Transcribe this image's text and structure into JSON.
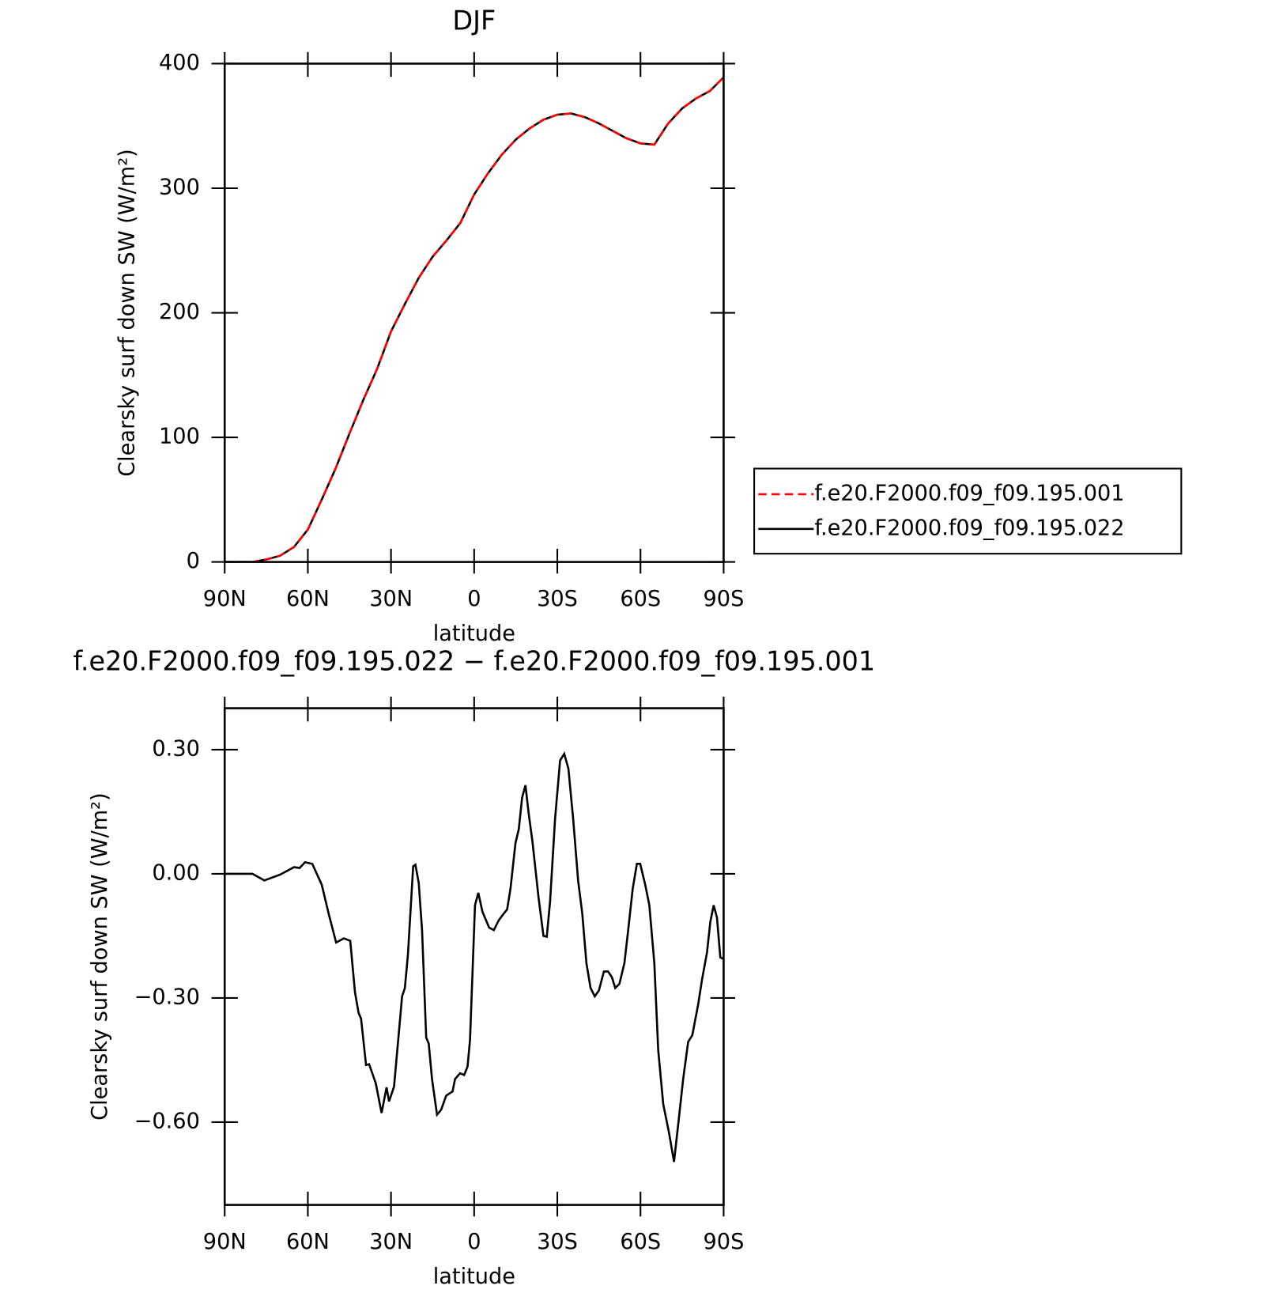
{
  "chart_data": [
    {
      "type": "line",
      "title": "DJF",
      "xlabel": "latitude",
      "ylabel": "Clearsky surf down SW (W/m²)",
      "x": [
        90,
        85,
        80,
        75,
        70,
        65,
        60,
        55,
        50,
        45,
        40,
        35,
        30,
        25,
        20,
        15,
        10,
        5,
        0,
        -5,
        -10,
        -15,
        -20,
        -25,
        -30,
        -35,
        -40,
        -45,
        -50,
        -55,
        -60,
        -65,
        -70,
        -75,
        -80,
        -85,
        -90
      ],
      "series": [
        {
          "name": "f.e20.F2000.f09_f09.195.022",
          "color": "#000000",
          "linestyle": "solid",
          "values": [
            0,
            0,
            0,
            2,
            5,
            12,
            26,
            50,
            75,
            103,
            130,
            155,
            185,
            207,
            228,
            245,
            258,
            272,
            295,
            312,
            327,
            339,
            348,
            355,
            359,
            360,
            357,
            352,
            346,
            340,
            336,
            335,
            352,
            364,
            372,
            378,
            389
          ]
        },
        {
          "name": "f.e20.F2000.f09_f09.195.001",
          "color": "#ff0000",
          "linestyle": "dashed",
          "values": [
            0,
            0,
            0,
            2,
            5,
            12,
            26,
            50,
            75,
            103,
            130,
            155,
            185,
            207,
            228,
            245,
            258,
            272,
            295,
            312,
            327,
            339,
            348,
            355,
            359,
            360,
            357,
            352,
            346,
            340,
            336,
            335,
            352,
            364,
            372,
            378,
            389
          ]
        }
      ],
      "legend_order": [
        1,
        0
      ],
      "legend": "right",
      "xlim": [
        90,
        -90
      ],
      "xticks": [
        {
          "value": 90,
          "label": "90N"
        },
        {
          "value": 60,
          "label": "60N"
        },
        {
          "value": 30,
          "label": "30N"
        },
        0,
        {
          "value": -30,
          "label": "30S"
        },
        {
          "value": -60,
          "label": "60S"
        },
        {
          "value": -90,
          "label": "90S"
        }
      ],
      "ylim": [
        0,
        400
      ],
      "yticks": [
        0,
        100,
        200,
        300,
        400
      ]
    },
    {
      "type": "line",
      "title": "f.e20.F2000.f09_f09.195.022 − f.e20.F2000.f09_f09.195.001",
      "xlabel": "latitude",
      "ylabel": "Clearsky surf down SW (W/m²)",
      "x": [
        90,
        80,
        75.7,
        70,
        65,
        63,
        61,
        58.4,
        55,
        52.5,
        49.8,
        47,
        44.7,
        43,
        41.7,
        40.8,
        39,
        37.9,
        35.5,
        33.4,
        31.6,
        30.7,
        28.9,
        26,
        25,
        23.9,
        22,
        21.2,
        20,
        18.8,
        17.3,
        16.4,
        15.2,
        13.4,
        11.9,
        10.1,
        7.8,
        6.9,
        5.1,
        3.6,
        2.4,
        1.5,
        -0.3,
        -1.5,
        -3,
        -5.4,
        -7.1,
        -8.9,
        -10.7,
        -11.9,
        -13.1,
        -14.9,
        -16.1,
        -17.3,
        -18.5,
        -19.7,
        -21.1,
        -23.2,
        -25,
        -26.2,
        -27.4,
        -29.2,
        -31,
        -32.5,
        -34,
        -35.7,
        -37.5,
        -39,
        -40.5,
        -42,
        -43.5,
        -45,
        -46.8,
        -48.3,
        -49.7,
        -50.9,
        -52.4,
        -54.2,
        -55.4,
        -57.2,
        -58.7,
        -59.9,
        -61.7,
        -63.2,
        -65,
        -66.4,
        -68.2,
        -70.3,
        -72.1,
        -73.6,
        -75.4,
        -77.2,
        -78.7,
        -80.8,
        -82.2,
        -84,
        -85.2,
        -86.4,
        -87.6,
        -88.8,
        -90
      ],
      "series": [
        {
          "color": "#000000",
          "linestyle": "solid",
          "values": [
            0,
            0,
            -0.016,
            -0.002,
            0.016,
            0.014,
            0.028,
            0.024,
            -0.026,
            -0.096,
            -0.166,
            -0.156,
            -0.162,
            -0.286,
            -0.336,
            -0.35,
            -0.462,
            -0.46,
            -0.506,
            -0.578,
            -0.516,
            -0.55,
            -0.514,
            -0.296,
            -0.276,
            -0.196,
            0.018,
            0.022,
            -0.022,
            -0.136,
            -0.396,
            -0.41,
            -0.496,
            -0.582,
            -0.57,
            -0.536,
            -0.526,
            -0.496,
            -0.482,
            -0.486,
            -0.466,
            -0.402,
            -0.076,
            -0.046,
            -0.092,
            -0.13,
            -0.136,
            -0.112,
            -0.096,
            -0.086,
            -0.036,
            0.074,
            0.108,
            0.184,
            0.214,
            0.144,
            0.074,
            -0.056,
            -0.15,
            -0.152,
            -0.066,
            0.134,
            0.274,
            0.29,
            0.254,
            0.134,
            -0.016,
            -0.096,
            -0.216,
            -0.276,
            -0.296,
            -0.282,
            -0.236,
            -0.236,
            -0.25,
            -0.276,
            -0.266,
            -0.216,
            -0.146,
            -0.036,
            0.024,
            0.024,
            -0.026,
            -0.076,
            -0.216,
            -0.426,
            -0.556,
            -0.626,
            -0.696,
            -0.606,
            -0.496,
            -0.406,
            -0.39,
            -0.316,
            -0.256,
            -0.19,
            -0.116,
            -0.076,
            -0.106,
            -0.202,
            -0.206
          ]
        }
      ],
      "xlim": [
        90,
        -90
      ],
      "xticks": [
        {
          "value": 90,
          "label": "90N"
        },
        {
          "value": 60,
          "label": "60N"
        },
        {
          "value": 30,
          "label": "30N"
        },
        0,
        {
          "value": -30,
          "label": "30S"
        },
        {
          "value": -60,
          "label": "60S"
        },
        {
          "value": -90,
          "label": "90S"
        }
      ],
      "ylim": [
        -0.8,
        0.4
      ],
      "yticks": [
        {
          "value": -0.6,
          "label": "−0.60"
        },
        {
          "value": -0.3,
          "label": "−0.30"
        },
        {
          "value": 0,
          "label": "0.00"
        },
        {
          "value": 0.3,
          "label": "0.30"
        }
      ]
    }
  ]
}
